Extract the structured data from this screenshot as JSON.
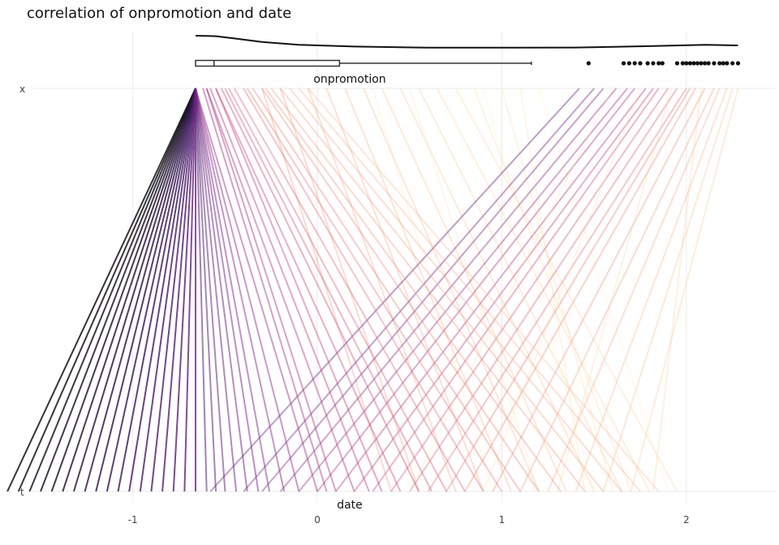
{
  "chart_data": {
    "type": "parallel-coordinates",
    "title": "correlation of onpromotion and date",
    "xlabel": "date",
    "top_axis_label": "x",
    "bottom_axis_label": "t",
    "xlim": [
      -1.72,
      2.48
    ],
    "x_ticks": [
      -1,
      0,
      1,
      2
    ],
    "x_tick_labels": [
      "-1",
      "0",
      "1",
      "2"
    ],
    "grid": true,
    "color_scale": [
      "#111111",
      "#3b1a5e",
      "#7b2a8c",
      "#c63f78",
      "#f08070",
      "#fcc48f",
      "#fdf6c8"
    ],
    "line_opacity_range": [
      0.85,
      0.3
    ],
    "segments_dark": [
      [
        -0.66,
        -1.68
      ],
      [
        -0.66,
        -1.62
      ],
      [
        -0.66,
        -1.56
      ],
      [
        -0.66,
        -1.5
      ],
      [
        -0.66,
        -1.44
      ],
      [
        -0.66,
        -1.38
      ],
      [
        -0.66,
        -1.32
      ],
      [
        -0.66,
        -1.26
      ],
      [
        -0.66,
        -1.2
      ],
      [
        -0.66,
        -1.14
      ],
      [
        -0.66,
        -1.08
      ],
      [
        -0.66,
        -1.02
      ],
      [
        -0.66,
        -0.96
      ],
      [
        -0.66,
        -0.9
      ],
      [
        -0.66,
        -0.84
      ],
      [
        -0.66,
        -0.78
      ],
      [
        -0.66,
        -0.72
      ],
      [
        -0.66,
        -0.66
      ]
    ],
    "segments_mid": [
      [
        -0.66,
        -0.6
      ],
      [
        -0.66,
        -0.55
      ],
      [
        -0.66,
        -0.5
      ],
      [
        -0.66,
        -0.44
      ],
      [
        -0.66,
        -0.38
      ],
      [
        -0.66,
        -0.32
      ],
      [
        -0.66,
        -0.26
      ],
      [
        -0.66,
        -0.18
      ],
      [
        -0.66,
        -0.1
      ],
      [
        -0.66,
        0.0
      ],
      [
        -0.62,
        0.05
      ],
      [
        -0.6,
        0.1
      ],
      [
        -0.6,
        0.2
      ],
      [
        -0.58,
        0.28
      ],
      [
        -0.55,
        0.35
      ],
      [
        -0.55,
        0.45
      ],
      [
        -0.52,
        0.55
      ],
      [
        -0.5,
        0.62
      ],
      [
        -0.48,
        0.7
      ],
      [
        -0.45,
        0.8
      ],
      [
        -0.4,
        0.9
      ],
      [
        -0.38,
        1.0
      ],
      [
        -0.35,
        1.1
      ],
      [
        -0.3,
        1.2
      ],
      [
        -0.28,
        1.32
      ],
      [
        -0.25,
        1.45
      ],
      [
        -0.2,
        1.55
      ],
      [
        -0.15,
        1.65
      ],
      [
        -0.1,
        1.75
      ],
      [
        -0.05,
        1.85
      ]
    ],
    "segments_cross": [
      [
        1.42,
        -0.58
      ],
      [
        1.5,
        -0.4
      ],
      [
        1.55,
        -0.3
      ],
      [
        1.62,
        -0.2
      ],
      [
        1.68,
        -0.1
      ],
      [
        1.72,
        0.0
      ],
      [
        1.78,
        0.1
      ],
      [
        1.82,
        0.2
      ],
      [
        1.85,
        0.3
      ],
      [
        1.9,
        0.4
      ],
      [
        1.95,
        0.5
      ],
      [
        2.0,
        0.6
      ],
      [
        2.02,
        0.7
      ],
      [
        2.05,
        0.8
      ],
      [
        2.1,
        0.95
      ],
      [
        2.15,
        1.1
      ],
      [
        2.18,
        1.25
      ],
      [
        2.22,
        1.4
      ],
      [
        2.25,
        1.55
      ],
      [
        2.28,
        1.7
      ],
      [
        2.08,
        1.82
      ],
      [
        1.92,
        1.3
      ],
      [
        1.75,
        0.9
      ],
      [
        1.6,
        0.5
      ]
    ],
    "segments_light": [
      [
        -0.3,
        0.4
      ],
      [
        -0.2,
        0.55
      ],
      [
        -0.05,
        0.75
      ],
      [
        0.05,
        0.9
      ],
      [
        0.15,
        1.05
      ],
      [
        0.25,
        1.2
      ],
      [
        0.35,
        1.35
      ],
      [
        0.45,
        1.5
      ],
      [
        0.55,
        1.65
      ],
      [
        0.65,
        1.8
      ],
      [
        0.75,
        1.95
      ],
      [
        0.85,
        1.7
      ],
      [
        1.0,
        1.6
      ],
      [
        1.1,
        1.45
      ],
      [
        0.5,
        1.2
      ],
      [
        0.3,
        0.95
      ],
      [
        1.2,
        1.9
      ],
      [
        0.9,
        1.5
      ]
    ],
    "box": {
      "label": "onpromotion",
      "min": -0.66,
      "q1": -0.66,
      "median": -0.56,
      "q3": 0.12,
      "whisker_max": 1.16
    },
    "outliers": [
      1.47,
      1.66,
      1.69,
      1.72,
      1.75,
      1.79,
      1.82,
      1.85,
      1.87,
      1.95,
      1.98,
      2.0,
      2.02,
      2.04,
      2.06,
      2.08,
      2.1,
      2.12,
      2.15,
      2.18,
      2.2,
      2.22,
      2.25,
      2.28
    ],
    "density": [
      [
        -0.66,
        1.0
      ],
      [
        -0.55,
        0.98
      ],
      [
        -0.45,
        0.88
      ],
      [
        -0.3,
        0.72
      ],
      [
        -0.1,
        0.6
      ],
      [
        0.2,
        0.52
      ],
      [
        0.6,
        0.47
      ],
      [
        1.0,
        0.47
      ],
      [
        1.4,
        0.48
      ],
      [
        1.8,
        0.54
      ],
      [
        2.1,
        0.6
      ],
      [
        2.28,
        0.57
      ]
    ]
  }
}
